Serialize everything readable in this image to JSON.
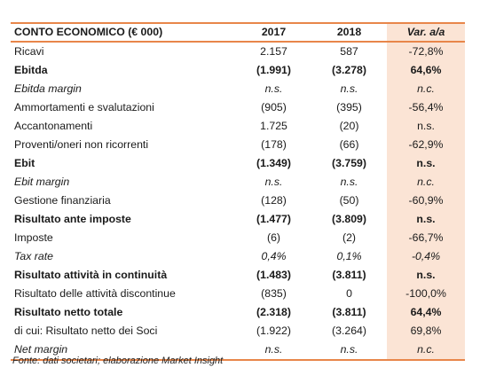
{
  "table": {
    "headers": [
      "CONTO ECONOMICO (€ 000)",
      "2017",
      "2018",
      "Var. a/a"
    ],
    "rows": [
      {
        "label": "Ricavi",
        "v2017": "2.157",
        "v2018": "587",
        "var": "-72,8%",
        "style": "normal"
      },
      {
        "label": "Ebitda",
        "v2017": "(1.991)",
        "v2018": "(3.278)",
        "var": "64,6%",
        "style": "bold"
      },
      {
        "label": "Ebitda margin",
        "v2017": "n.s.",
        "v2018": "n.s.",
        "var": "n.c.",
        "style": "italic"
      },
      {
        "label": "Ammortamenti  e svalutazioni",
        "v2017": "(905)",
        "v2018": "(395)",
        "var": "-56,4%",
        "style": "normal"
      },
      {
        "label": "Accantonamenti",
        "v2017": "1.725",
        "v2018": "(20)",
        "var": "n.s.",
        "style": "normal"
      },
      {
        "label": "Proventi/oneri non ricorrenti",
        "v2017": "(178)",
        "v2018": "(66)",
        "var": "-62,9%",
        "style": "normal"
      },
      {
        "label": "Ebit",
        "v2017": "(1.349)",
        "v2018": "(3.759)",
        "var": "n.s.",
        "style": "bold"
      },
      {
        "label": "Ebit margin",
        "v2017": "n.s.",
        "v2018": "n.s.",
        "var": "n.c.",
        "style": "italic"
      },
      {
        "label": "Gestione finanziaria",
        "v2017": "(128)",
        "v2018": "(50)",
        "var": "-60,9%",
        "style": "normal"
      },
      {
        "label": "Risultato ante imposte",
        "v2017": "(1.477)",
        "v2018": "(3.809)",
        "var": "n.s.",
        "style": "bold"
      },
      {
        "label": "Imposte",
        "v2017": "(6)",
        "v2018": "(2)",
        "var": "-66,7%",
        "style": "normal"
      },
      {
        "label": "Tax rate",
        "v2017": "0,4%",
        "v2018": "0,1%",
        "var": "-0,4%",
        "style": "italic"
      },
      {
        "label": "Risultato attività in continuità",
        "v2017": "(1.483)",
        "v2018": "(3.811)",
        "var": "n.s.",
        "style": "bold"
      },
      {
        "label": "Risultato delle attività discontinue",
        "v2017": "(835)",
        "v2018": "0",
        "var": "-100,0%",
        "style": "normal"
      },
      {
        "label": "Risultato netto totale",
        "v2017": "(2.318)",
        "v2018": "(3.811)",
        "var": "64,4%",
        "style": "bold"
      },
      {
        "label": "di cui: Risultato netto dei Soci",
        "v2017": "(1.922)",
        "v2018": "(3.264)",
        "var": "69,8%",
        "style": "normal"
      },
      {
        "label": "Net margin",
        "v2017": "n.s.",
        "v2018": "n.s.",
        "var": "n.c.",
        "style": "italic"
      }
    ]
  },
  "source": "Fonte: dati societari; elaborazione Market Insight",
  "colors": {
    "accent_line": "#e8864a",
    "var_column_bg": "#fbe4d5"
  }
}
